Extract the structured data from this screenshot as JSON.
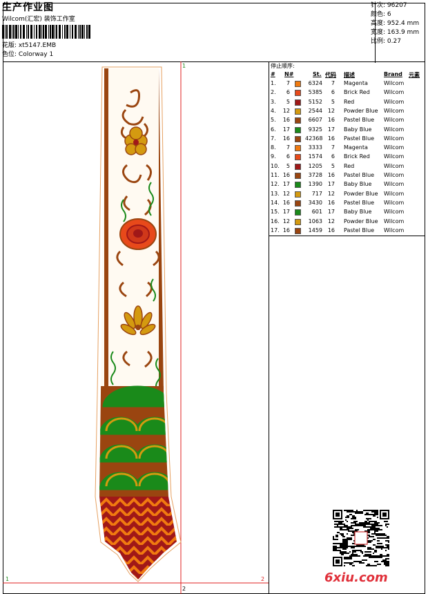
{
  "header": {
    "title": "生产作业图",
    "subtitle": "Wilcom(汇宏) 装饰工作室",
    "pattern_label": "花版:",
    "pattern_value": "xt5147.EMB",
    "colorway_label": "色位:",
    "colorway_value": "Colorway 1"
  },
  "stats": {
    "stitches_label": "针次:",
    "stitches_value": "96207",
    "colors_label": "颜色:",
    "colors_value": "6",
    "height_label": "高度:",
    "height_value": "952.4 mm",
    "width_label": "宽度:",
    "width_value": "163.9 mm",
    "scale_label": "比例:",
    "scale_value": "0.27"
  },
  "sequence": {
    "title": "停止顺序:",
    "columns": [
      "#",
      "N#",
      "St.",
      "代码",
      "描述",
      "Brand",
      "元素"
    ],
    "rows": [
      {
        "idx": "1.",
        "n": "7",
        "st": "6324",
        "code": "7",
        "desc": "Magenta",
        "brand": "Wilcom",
        "color": "#f07a10"
      },
      {
        "idx": "2.",
        "n": "6",
        "st": "5385",
        "code": "6",
        "desc": "Brick Red",
        "brand": "Wilcom",
        "color": "#e8491a"
      },
      {
        "idx": "3.",
        "n": "5",
        "st": "5152",
        "code": "5",
        "desc": "Red",
        "brand": "Wilcom",
        "color": "#a01818"
      },
      {
        "idx": "4.",
        "n": "12",
        "st": "2544",
        "code": "12",
        "desc": "Powder Blue",
        "brand": "Wilcom",
        "color": "#d49a10"
      },
      {
        "idx": "5.",
        "n": "16",
        "st": "6607",
        "code": "16",
        "desc": "Pastel Blue",
        "brand": "Wilcom",
        "color": "#9a4510"
      },
      {
        "idx": "6.",
        "n": "17",
        "st": "9325",
        "code": "17",
        "desc": "Baby Blue",
        "brand": "Wilcom",
        "color": "#1a8a1a"
      },
      {
        "idx": "7.",
        "n": "16",
        "st": "42368",
        "code": "16",
        "desc": "Pastel Blue",
        "brand": "Wilcom",
        "color": "#9a4510"
      },
      {
        "idx": "8.",
        "n": "7",
        "st": "3333",
        "code": "7",
        "desc": "Magenta",
        "brand": "Wilcom",
        "color": "#f07a10"
      },
      {
        "idx": "9.",
        "n": "6",
        "st": "1574",
        "code": "6",
        "desc": "Brick Red",
        "brand": "Wilcom",
        "color": "#e8491a"
      },
      {
        "idx": "10.",
        "n": "5",
        "st": "1205",
        "code": "5",
        "desc": "Red",
        "brand": "Wilcom",
        "color": "#a01818"
      },
      {
        "idx": "11.",
        "n": "16",
        "st": "3728",
        "code": "16",
        "desc": "Pastel Blue",
        "brand": "Wilcom",
        "color": "#9a4510"
      },
      {
        "idx": "12.",
        "n": "17",
        "st": "1390",
        "code": "17",
        "desc": "Baby Blue",
        "brand": "Wilcom",
        "color": "#1a8a1a"
      },
      {
        "idx": "13.",
        "n": "12",
        "st": "717",
        "code": "12",
        "desc": "Powder Blue",
        "brand": "Wilcom",
        "color": "#d49a10"
      },
      {
        "idx": "14.",
        "n": "16",
        "st": "3430",
        "code": "16",
        "desc": "Pastel Blue",
        "brand": "Wilcom",
        "color": "#9a4510"
      },
      {
        "idx": "15.",
        "n": "17",
        "st": "601",
        "code": "17",
        "desc": "Baby Blue",
        "brand": "Wilcom",
        "color": "#1a8a1a"
      },
      {
        "idx": "16.",
        "n": "12",
        "st": "1063",
        "code": "12",
        "desc": "Powder Blue",
        "brand": "Wilcom",
        "color": "#d49a10"
      },
      {
        "idx": "17.",
        "n": "16",
        "st": "1459",
        "code": "16",
        "desc": "Pastel Blue",
        "brand": "Wilcom",
        "color": "#9a4510"
      }
    ]
  },
  "markers": {
    "top": "1",
    "left": "1",
    "right": "2",
    "bottom": "2"
  },
  "watermark": {
    "logo_text": "6xiu.com"
  },
  "colors": {
    "guide_red": "#e02020",
    "outline_orange": "#e6a060"
  }
}
